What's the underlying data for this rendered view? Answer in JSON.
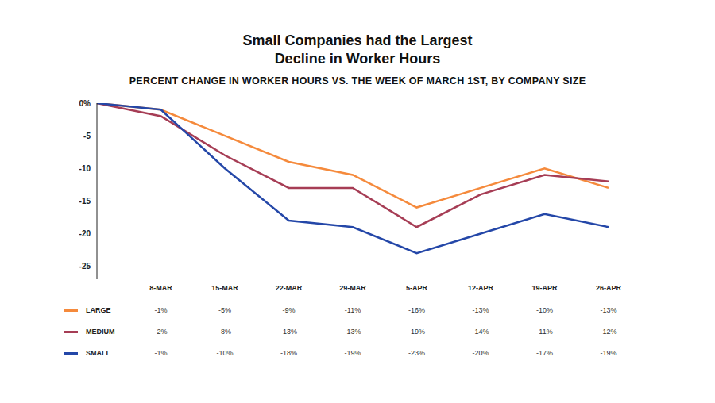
{
  "chart_data": {
    "type": "line",
    "title": "Small Companies had the Largest Decline in Worker Hours",
    "subtitle": "PERCENT CHANGE IN WORKER HOURS VS. THE WEEK OF MARCH 1ST, BY COMPANY SIZE",
    "categories": [
      null,
      "8-MAR",
      "15-MAR",
      "22-MAR",
      "29-MAR",
      "5-APR",
      "12-APR",
      "19-APR",
      "26-APR"
    ],
    "series": [
      {
        "name": "LARGE",
        "color": "#f58a3c",
        "values": [
          0,
          -1,
          -5,
          -9,
          -11,
          -16,
          -13,
          -10,
          -13
        ],
        "value_labels": [
          null,
          "-1%",
          "-5%",
          "-9%",
          "-11%",
          "-16%",
          "-13%",
          "-10%",
          "-13%"
        ]
      },
      {
        "name": "MEDIUM",
        "color": "#a63d55",
        "values": [
          0,
          -2,
          -8,
          -13,
          -13,
          -19,
          -14,
          -11,
          -12
        ],
        "value_labels": [
          null,
          "-2%",
          "-8%",
          "-13%",
          "-13%",
          "-19%",
          "-14%",
          "-11%",
          "-12%"
        ]
      },
      {
        "name": "SMALL",
        "color": "#2447a8",
        "values": [
          0,
          -1,
          -10,
          -18,
          -19,
          -23,
          -20,
          -17,
          -19
        ],
        "value_labels": [
          null,
          "-1%",
          "-10%",
          "-18%",
          "-19%",
          "-23%",
          "-20%",
          "-17%",
          "-19%"
        ]
      }
    ],
    "ylim": [
      -27,
      0
    ],
    "yticks": [
      {
        "value": 0,
        "label": "0%"
      },
      -5,
      -10,
      -15,
      -20,
      -25
    ],
    "grid": false
  }
}
